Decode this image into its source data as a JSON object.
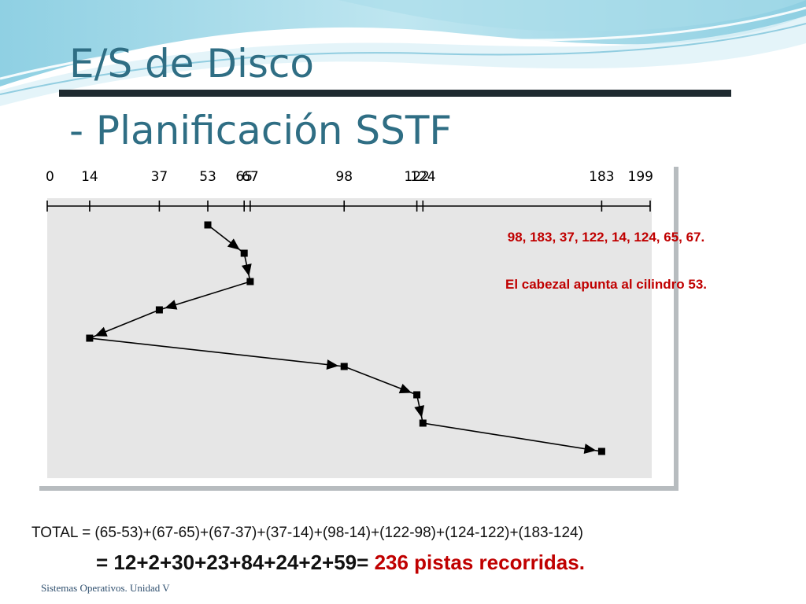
{
  "slide": {
    "title_line1": "E/S de Disco",
    "title_line2": "- Planificación SSTF",
    "request_queue": "98, 183, 37, 122, 14, 124, 65, 67.",
    "head_note": "El cabezal apunta al cilindro 53.",
    "total_label": "TOTAL",
    "total_expression": "= (65-53)+(67-65)+(67-37)+(37-14)+(98-14)+(122-98)+(124-122)+(183-124)",
    "result_sum": "= 12+2+30+23+84+24+2+59=",
    "result_value": "236 pistas recorridas.",
    "footer": "Sistemas Operativos. Unidad V"
  },
  "diagram": {
    "cylinder_min": 0,
    "cylinder_max": 199,
    "axis_ticks": [
      0,
      14,
      37,
      53,
      65,
      67,
      98,
      122,
      124,
      183,
      199
    ],
    "head_start": 53,
    "service_order": [
      53,
      65,
      67,
      37,
      14,
      98,
      122,
      124,
      183
    ]
  },
  "colors": {
    "title": "#2f6e84",
    "accent_red": "#c00000",
    "path": "#000000",
    "panel_bg": "#e6e6e6"
  }
}
